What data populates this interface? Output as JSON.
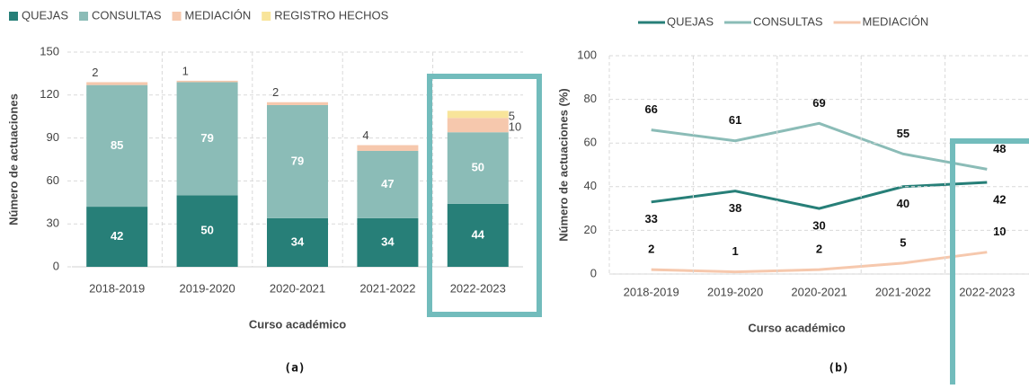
{
  "chart_data": [
    {
      "type": "stacked-bar",
      "label": "(a)",
      "x_label": "Curso académico",
      "y_label": "Número de actuaciones",
      "categories": [
        "2018-2019",
        "2019-2020",
        "2020-2021",
        "2021-2022",
        "2022-2023"
      ],
      "series": [
        {
          "name": "QUEJAS",
          "color": "#277f78",
          "values": [
            42,
            50,
            34,
            34,
            44
          ]
        },
        {
          "name": "CONSULTAS",
          "color": "#8bbcb7",
          "values": [
            85,
            79,
            79,
            47,
            50
          ]
        },
        {
          "name": "MEDIACIÓN",
          "color": "#f6c8ad",
          "values": [
            2,
            1,
            2,
            4,
            10
          ]
        },
        {
          "name": "REGISTRO HECHOS",
          "color": "#f8e49a",
          "values": [
            0,
            0,
            0,
            0,
            5
          ]
        }
      ],
      "ylim": [
        0,
        150
      ],
      "yticks": [
        0,
        30,
        60,
        90,
        120,
        150
      ],
      "grid": true,
      "highlight_color": "#72bcbc"
    },
    {
      "type": "line",
      "label": "(b)",
      "x_label": "Curso académico",
      "y_label": "Número de actuaciones (%)",
      "categories": [
        "2018-2019",
        "2019-2020",
        "2020-2021",
        "2021-2022",
        "2022-2023"
      ],
      "series": [
        {
          "name": "QUEJAS",
          "color": "#277f78",
          "values": [
            33,
            38,
            30,
            40,
            42
          ]
        },
        {
          "name": "CONSULTAS",
          "color": "#8bbcb7",
          "values": [
            66,
            61,
            69,
            55,
            48
          ]
        },
        {
          "name": "MEDIACIÓN",
          "color": "#f6c8ad",
          "values": [
            2,
            1,
            2,
            5,
            10
          ]
        }
      ],
      "ylim": [
        0,
        100
      ],
      "yticks": [
        0,
        20,
        40,
        60,
        80,
        100
      ],
      "grid": true,
      "highlight_color": "#72bcbc"
    }
  ]
}
